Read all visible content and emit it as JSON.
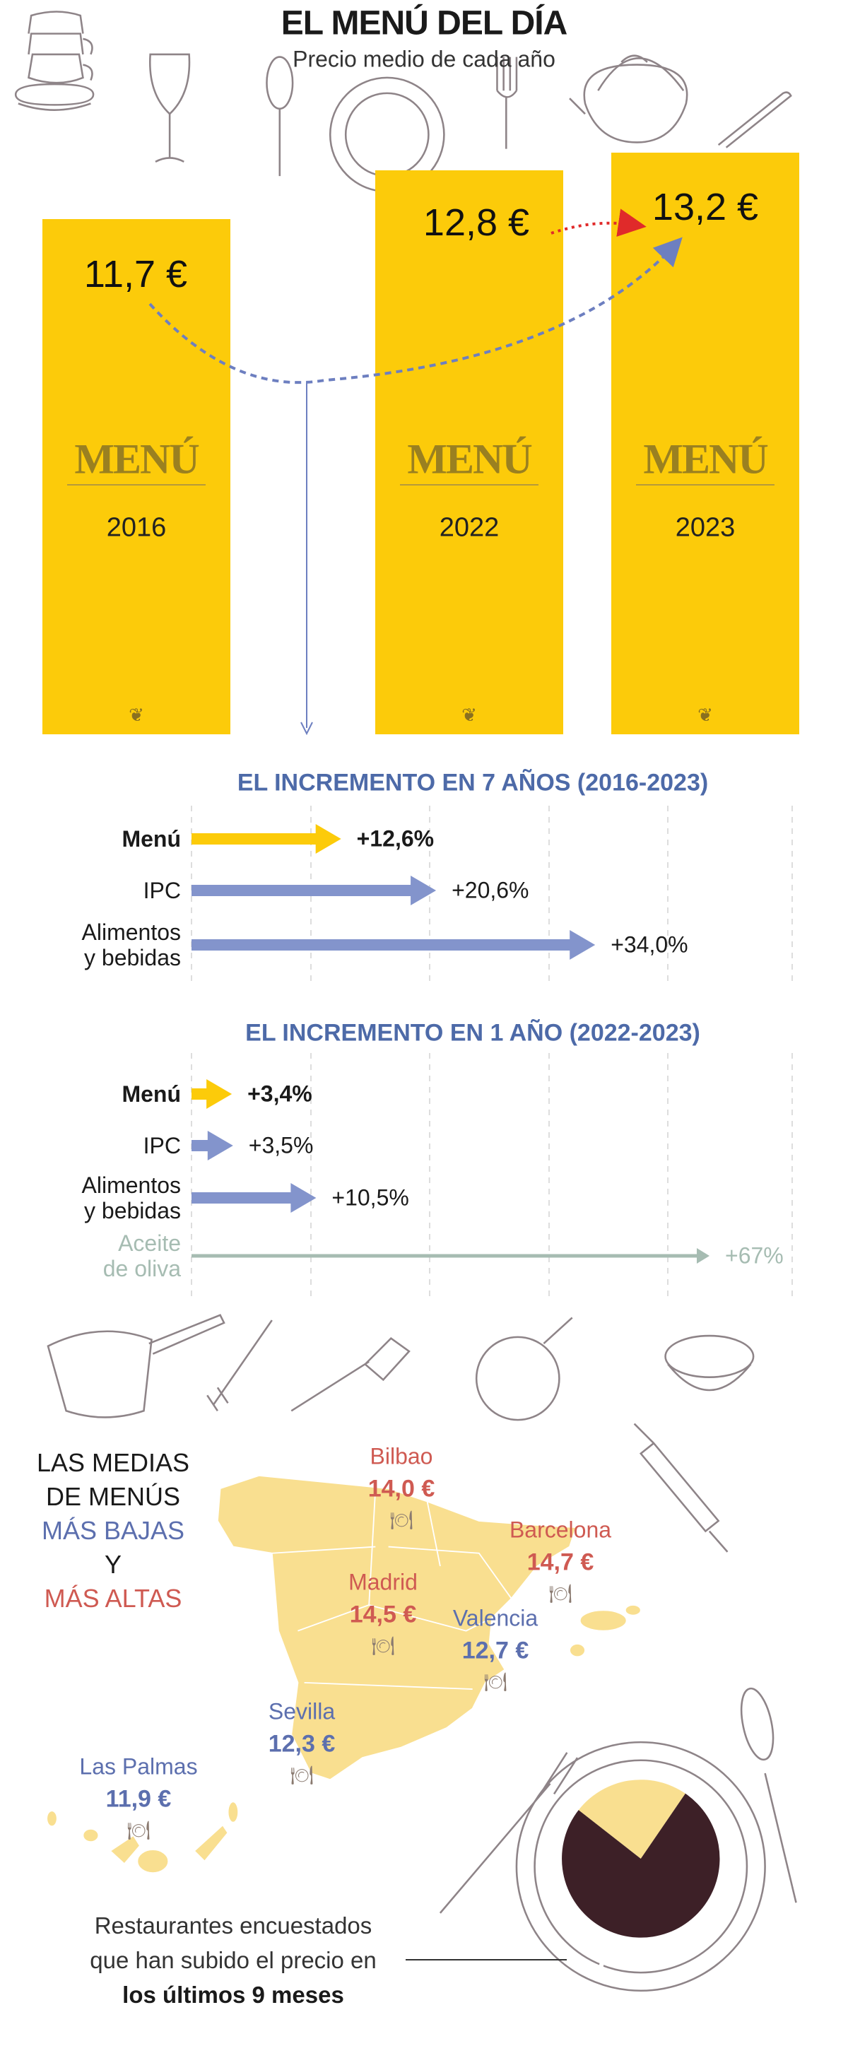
{
  "header": {
    "title": "EL MENÚ DEL DÍA",
    "subtitle": "Precio medio de cada año"
  },
  "colors": {
    "bar": "#fccb0a",
    "arrow_blue": "#8394cc",
    "heading_blue": "#4d6aa8",
    "high_red": "#cf5a52",
    "low_blue": "#5c6fae",
    "map": "#f9df90",
    "pie_dark": "#3d2027",
    "pie_light": "#f9df90",
    "olive": "#a6bcb2"
  },
  "logo_text": "MENÚ",
  "chart_data": [
    {
      "type": "bar",
      "categories": [
        "2016",
        "2022",
        "2023"
      ],
      "values": [
        11.7,
        12.8,
        13.2
      ],
      "value_labels": [
        "11,7 €",
        "12,8 €",
        "13,2 €"
      ],
      "title": "EL MENÚ DEL DÍA",
      "subtitle": "Precio medio de cada año",
      "ylim": [
        0,
        13.2
      ]
    },
    {
      "type": "bar",
      "orientation": "horizontal",
      "title": "EL INCREMENTO EN 7 AÑOS (2016-2023)",
      "categories": [
        "Menú",
        "IPC",
        "Alimentos y bebidas"
      ],
      "category_lines": [
        [
          "Menú"
        ],
        [
          "IPC"
        ],
        [
          "Alimentos",
          "y bebidas"
        ]
      ],
      "values": [
        12.6,
        20.6,
        34.0
      ],
      "value_labels": [
        "+12,6%",
        "+20,6%",
        "+34,0%"
      ],
      "grid": true
    },
    {
      "type": "bar",
      "orientation": "horizontal",
      "title": "EL INCREMENTO EN 1 AÑO (2022-2023)",
      "categories": [
        "Menú",
        "IPC",
        "Alimentos y bebidas",
        "Aceite de oliva"
      ],
      "category_lines": [
        [
          "Menú"
        ],
        [
          "IPC"
        ],
        [
          "Alimentos",
          "y bebidas"
        ],
        [
          "Aceite",
          "de oliva"
        ]
      ],
      "values": [
        3.4,
        3.5,
        10.5,
        67
      ],
      "value_labels": [
        "+3,4%",
        "+3,5%",
        "+10,5%",
        "+67%"
      ],
      "grid": true
    },
    {
      "type": "pie",
      "values": [
        76,
        24
      ],
      "value_label": "76%"
    }
  ],
  "map": {
    "legend": {
      "line1": "LAS MEDIAS",
      "line2": "DE MENÚS",
      "low": "MÁS BAJAS",
      "and": "Y",
      "high": "MÁS ALTAS"
    },
    "cities": [
      {
        "name": "Bilbao",
        "price": "14,0 €",
        "level": "high"
      },
      {
        "name": "Barcelona",
        "price": "14,7 €",
        "level": "high"
      },
      {
        "name": "Madrid",
        "price": "14,5 €",
        "level": "high"
      },
      {
        "name": "Valencia",
        "price": "12,7 €",
        "level": "low"
      },
      {
        "name": "Sevilla",
        "price": "12,3 €",
        "level": "low"
      },
      {
        "name": "Las Palmas",
        "price": "11,9 €",
        "level": "low"
      }
    ]
  },
  "footer": {
    "line1": "Restaurantes encuestados",
    "line2": "que han subido el precio en",
    "line3": "los últimos 9 meses"
  }
}
